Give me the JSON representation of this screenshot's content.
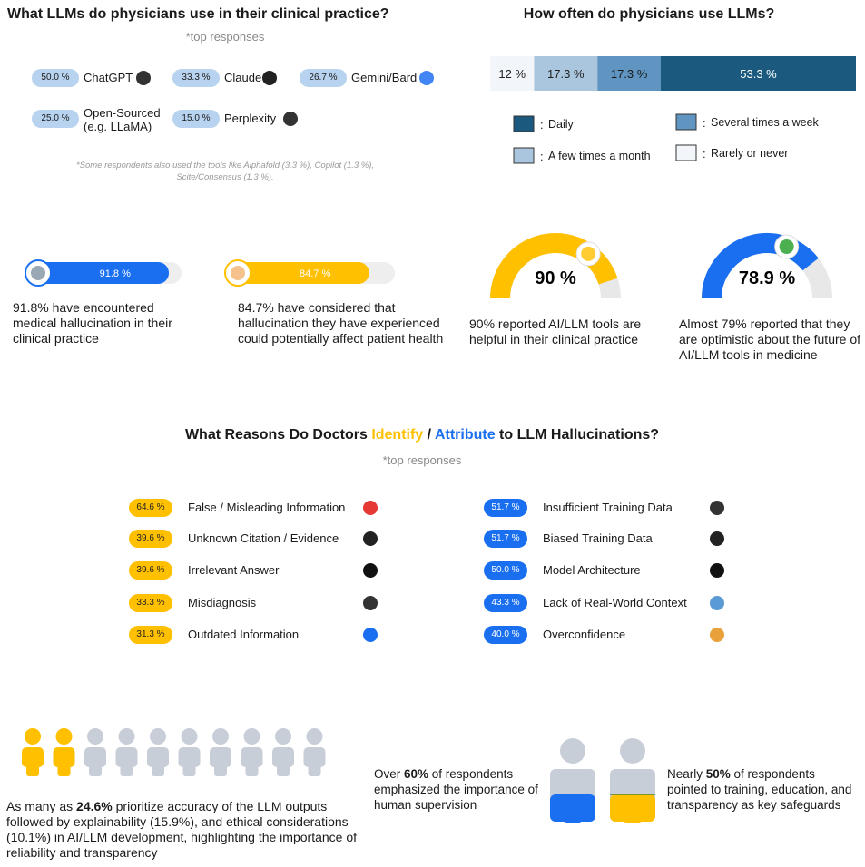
{
  "llm_usage": {
    "title": "What LLMs do physicians use in their clinical practice?",
    "subtitle": "*top responses",
    "items": [
      {
        "share": "50.0 %",
        "name": "ChatGPT"
      },
      {
        "share": "33.3 %",
        "name": "Claude"
      },
      {
        "share": "26.7 %",
        "name": "Gemini/Bard"
      },
      {
        "share": "25.0 %",
        "name": "Open-Sourced (e.g. LLaMA)"
      },
      {
        "share": "15.0 %",
        "name": "Perplexity"
      }
    ],
    "footnote": "*Some respondents also used the tools like Alphafold (3.3 %), Copilot (1.3 %), Scite/Consensus (1.3 %)."
  },
  "frequency": {
    "title": "How often do physicians use LLMs?",
    "legend_separator": ":",
    "segments": [
      {
        "name": "Rarely or never",
        "value": 12,
        "label": "12 %",
        "color": "#f2f5f9",
        "text_color": "#222222"
      },
      {
        "name": "A few times a month",
        "value": 17.3,
        "label": "17.3 %",
        "color": "#a9c6de",
        "text_color": "#222222"
      },
      {
        "name": "Several times a week",
        "value": 17.3,
        "label": "17.3 %",
        "color": "#5f95c0",
        "text_color": "#1a1a1a"
      },
      {
        "name": "Daily",
        "value": 53.3,
        "label": "53.3 %",
        "color": "#1b5a7e",
        "text_color": "#ffffff"
      }
    ]
  },
  "hallucination": [
    {
      "value": 91.8,
      "label": "91.8 %",
      "color": "#1a6ff0",
      "caption": "91.8% have encountered medical hallucination in their clinical practice"
    },
    {
      "value": 84.7,
      "label": "84.7 %",
      "color": "#ffc000",
      "caption": "84.7% have considered that hallucination they have experienced could potentially affect patient health"
    }
  ],
  "gauges": [
    {
      "value": 90,
      "label": "90 %",
      "color": "#ffc000",
      "caption": "90% reported AI/LLM tools are helpful in their clinical practice"
    },
    {
      "value": 78.9,
      "label": "78.9 %",
      "color": "#1a6ff0",
      "caption": "Almost 79% reported that they are optimistic about the future of AI/LLM tools in medicine"
    }
  ],
  "reasons": {
    "title": {
      "before": "What Reasons Do Doctors ",
      "identify": "Identify",
      "separator": " / ",
      "attribute": "Attribute",
      "after": " to LLM Hallucinations?"
    },
    "subtitle": "*top responses",
    "identify": [
      {
        "share": "64.6 %",
        "name": "False / Misleading Information"
      },
      {
        "share": "39.6 %",
        "name": "Unknown Citation / Evidence"
      },
      {
        "share": "39.6 %",
        "name": "Irrelevant Answer"
      },
      {
        "share": "33.3 %",
        "name": "Misdiagnosis"
      },
      {
        "share": "31.3 %",
        "name": "Outdated Information"
      }
    ],
    "attribute": [
      {
        "share": "51.7 %",
        "name": "Insufficient Training Data"
      },
      {
        "share": "51.7 %",
        "name": "Biased Training Data"
      },
      {
        "share": "50.0 %",
        "name": "Model Architecture"
      },
      {
        "share": "43.3 %",
        "name": "Lack of Real-World Context"
      },
      {
        "share": "40.0 %",
        "name": "Overconfidence"
      }
    ]
  },
  "priorities": {
    "before": "As many as ",
    "highlight": "24.6%",
    "after": " prioritize accuracy of the LLM outputs followed by explainability (15.9%), and ethical considerations (10.1%) in AI/LLM development, highlighting the importance of reliability and transparency"
  },
  "supervision": {
    "before": "Over ",
    "highlight": "60%",
    "after": " of respondents emphasized the importance of human supervision"
  },
  "safeguards": {
    "before": "Nearly ",
    "highlight": "50%",
    "after": " of respondents pointed to training, education, and transparency as key safeguards"
  }
}
